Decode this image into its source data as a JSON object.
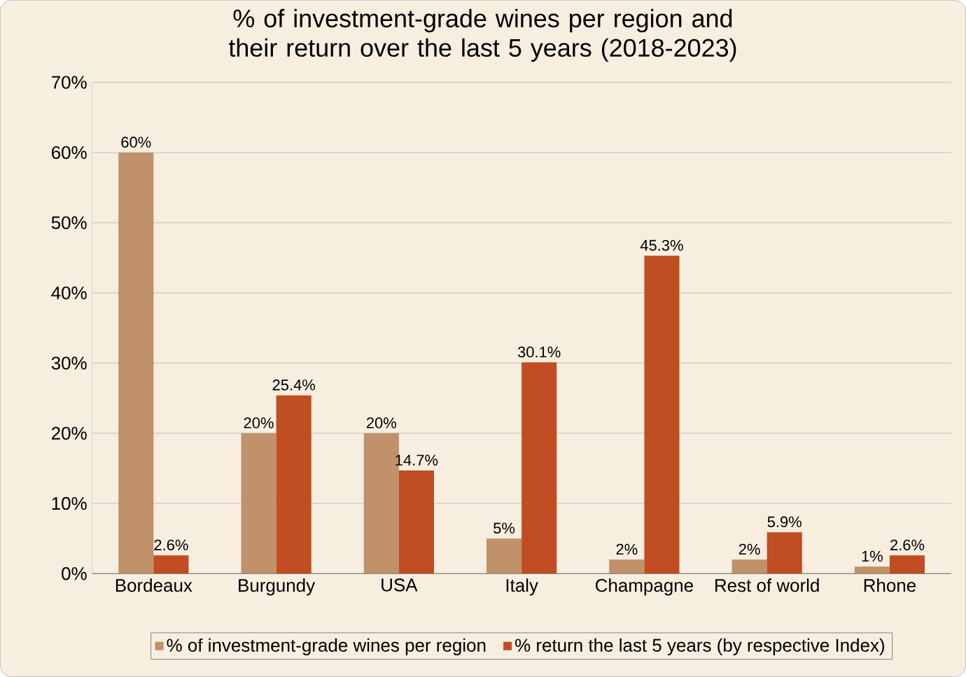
{
  "chart_data": {
    "type": "bar",
    "title": "% of investment-grade wines per region and their return over the last 5 years (2018-2023)",
    "categories": [
      "Bordeaux",
      "Burgundy",
      "USA",
      "Italy",
      "Champagne",
      "Rest of world",
      "Rhone"
    ],
    "series": [
      {
        "name": "% of investment-grade wines per region",
        "color": "#c0916a",
        "values": [
          60,
          20,
          20,
          5,
          2,
          2,
          1
        ],
        "value_labels": [
          "60%",
          "20%",
          "20%",
          "5%",
          "2%",
          "2%",
          "1%"
        ]
      },
      {
        "name": "% return the last 5 years (by respective Index)",
        "color": "#c04e22",
        "values": [
          2.6,
          25.4,
          14.7,
          30.1,
          45.3,
          5.9,
          2.6
        ],
        "value_labels": [
          "2.6%",
          "25.4%",
          "14.7%",
          "30.1%",
          "45.3%",
          "5.9%",
          "2.6%"
        ]
      }
    ],
    "ylim": [
      0,
      70
    ],
    "yticks": [
      {
        "value": 0,
        "label": "0%"
      },
      {
        "value": 10,
        "label": "10%"
      },
      {
        "value": 20,
        "label": "20%"
      },
      {
        "value": 30,
        "label": "30%"
      },
      {
        "value": 40,
        "label": "40%"
      },
      {
        "value": 50,
        "label": "50%"
      },
      {
        "value": 60,
        "label": "60%"
      },
      {
        "value": 70,
        "label": "70%"
      }
    ],
    "grid": "y",
    "legend": "bottom"
  }
}
